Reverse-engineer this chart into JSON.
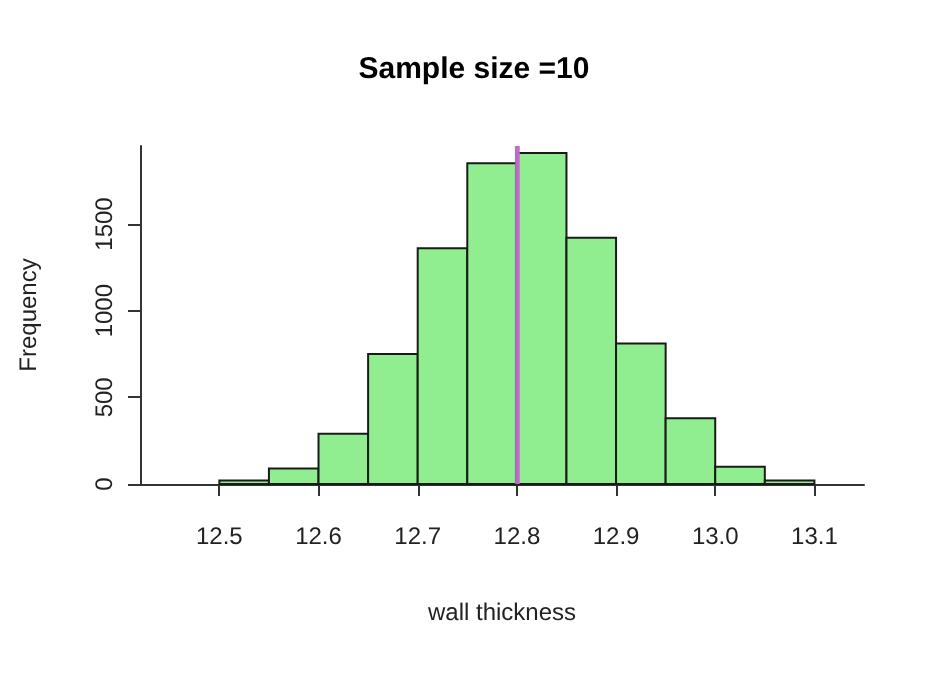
{
  "chart_data": {
    "type": "histogram",
    "title": "Sample size =10",
    "xlabel": "wall thickness",
    "ylabel": "Frequency",
    "bins": [
      12.5,
      12.55,
      12.6,
      12.65,
      12.7,
      12.75,
      12.8,
      12.85,
      12.9,
      12.95,
      13.0,
      13.05,
      13.1
    ],
    "values": [
      20,
      90,
      290,
      750,
      1360,
      1850,
      1910,
      1420,
      810,
      380,
      100,
      20
    ],
    "color": "#90ee90",
    "xlim": [
      12.42,
      13.15
    ],
    "xticks": [
      12.5,
      12.6,
      12.7,
      12.8,
      12.9,
      {
        "value": 13.0,
        "label": "13.0"
      },
      13.1
    ],
    "ylim": [
      0,
      1950
    ],
    "yticks": [
      0,
      500,
      1000,
      1500
    ],
    "ref_lines": [
      {
        "axis": "x",
        "value": 12.8,
        "color": "#7a7aa8"
      },
      {
        "axis": "x",
        "value": 12.801,
        "color": "#cc66cc"
      }
    ],
    "grid": false
  }
}
